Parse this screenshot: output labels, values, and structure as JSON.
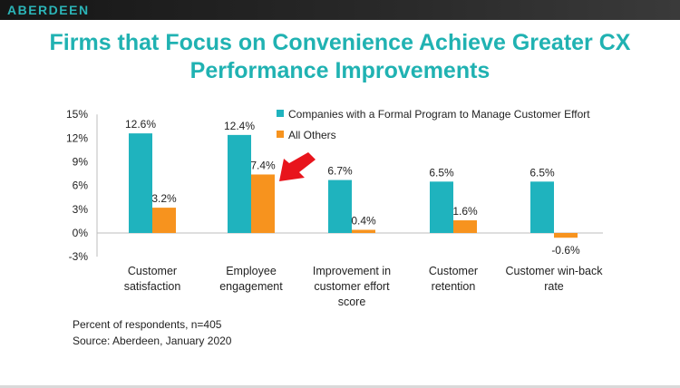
{
  "header": {
    "brand": "ABERDEEN"
  },
  "title_line1": "Firms that Focus on Convenience Achieve Greater CX",
  "title_line2": "Performance Improvements",
  "footnotes": {
    "respondents": "Percent of respondents, n=405",
    "source": "Source: Aberdeen, January 2020"
  },
  "colors": {
    "series1": "#1fb3be",
    "series2": "#f7931e",
    "arrow": "#e8141c",
    "title": "#20b2b2"
  },
  "chart_data": {
    "type": "bar",
    "title": "Firms that Focus on Convenience Achieve Greater CX Performance Improvements",
    "categories": [
      [
        "Customer",
        "satisfaction"
      ],
      [
        "Employee",
        "engagement"
      ],
      [
        "Improvement in",
        "customer effort",
        "score"
      ],
      [
        "Customer",
        "retention"
      ],
      [
        "Customer win-back",
        "rate"
      ]
    ],
    "series": [
      {
        "name": "Companies with a Formal Program to Manage Customer Effort",
        "values": [
          12.6,
          12.4,
          6.7,
          6.5,
          6.5
        ],
        "labels": [
          "12.6%",
          "12.4%",
          "6.7%",
          "6.5%",
          "6.5%"
        ]
      },
      {
        "name": "All Others",
        "values": [
          3.2,
          7.4,
          0.4,
          1.6,
          -0.6
        ],
        "labels": [
          "3.2%",
          "7.4%",
          "0.4%",
          "1.6%",
          "-0.6%"
        ]
      }
    ],
    "yticks": [
      15,
      12,
      9,
      6,
      3,
      0,
      -3
    ],
    "ytick_labels": [
      "15%",
      "12%",
      "9%",
      "6%",
      "3%",
      "0%",
      "-3%"
    ],
    "ylim": [
      -3,
      15
    ],
    "legend_position": "top-right",
    "annotation": "red arrow pointing at All Others employee engagement (7.4%)"
  }
}
